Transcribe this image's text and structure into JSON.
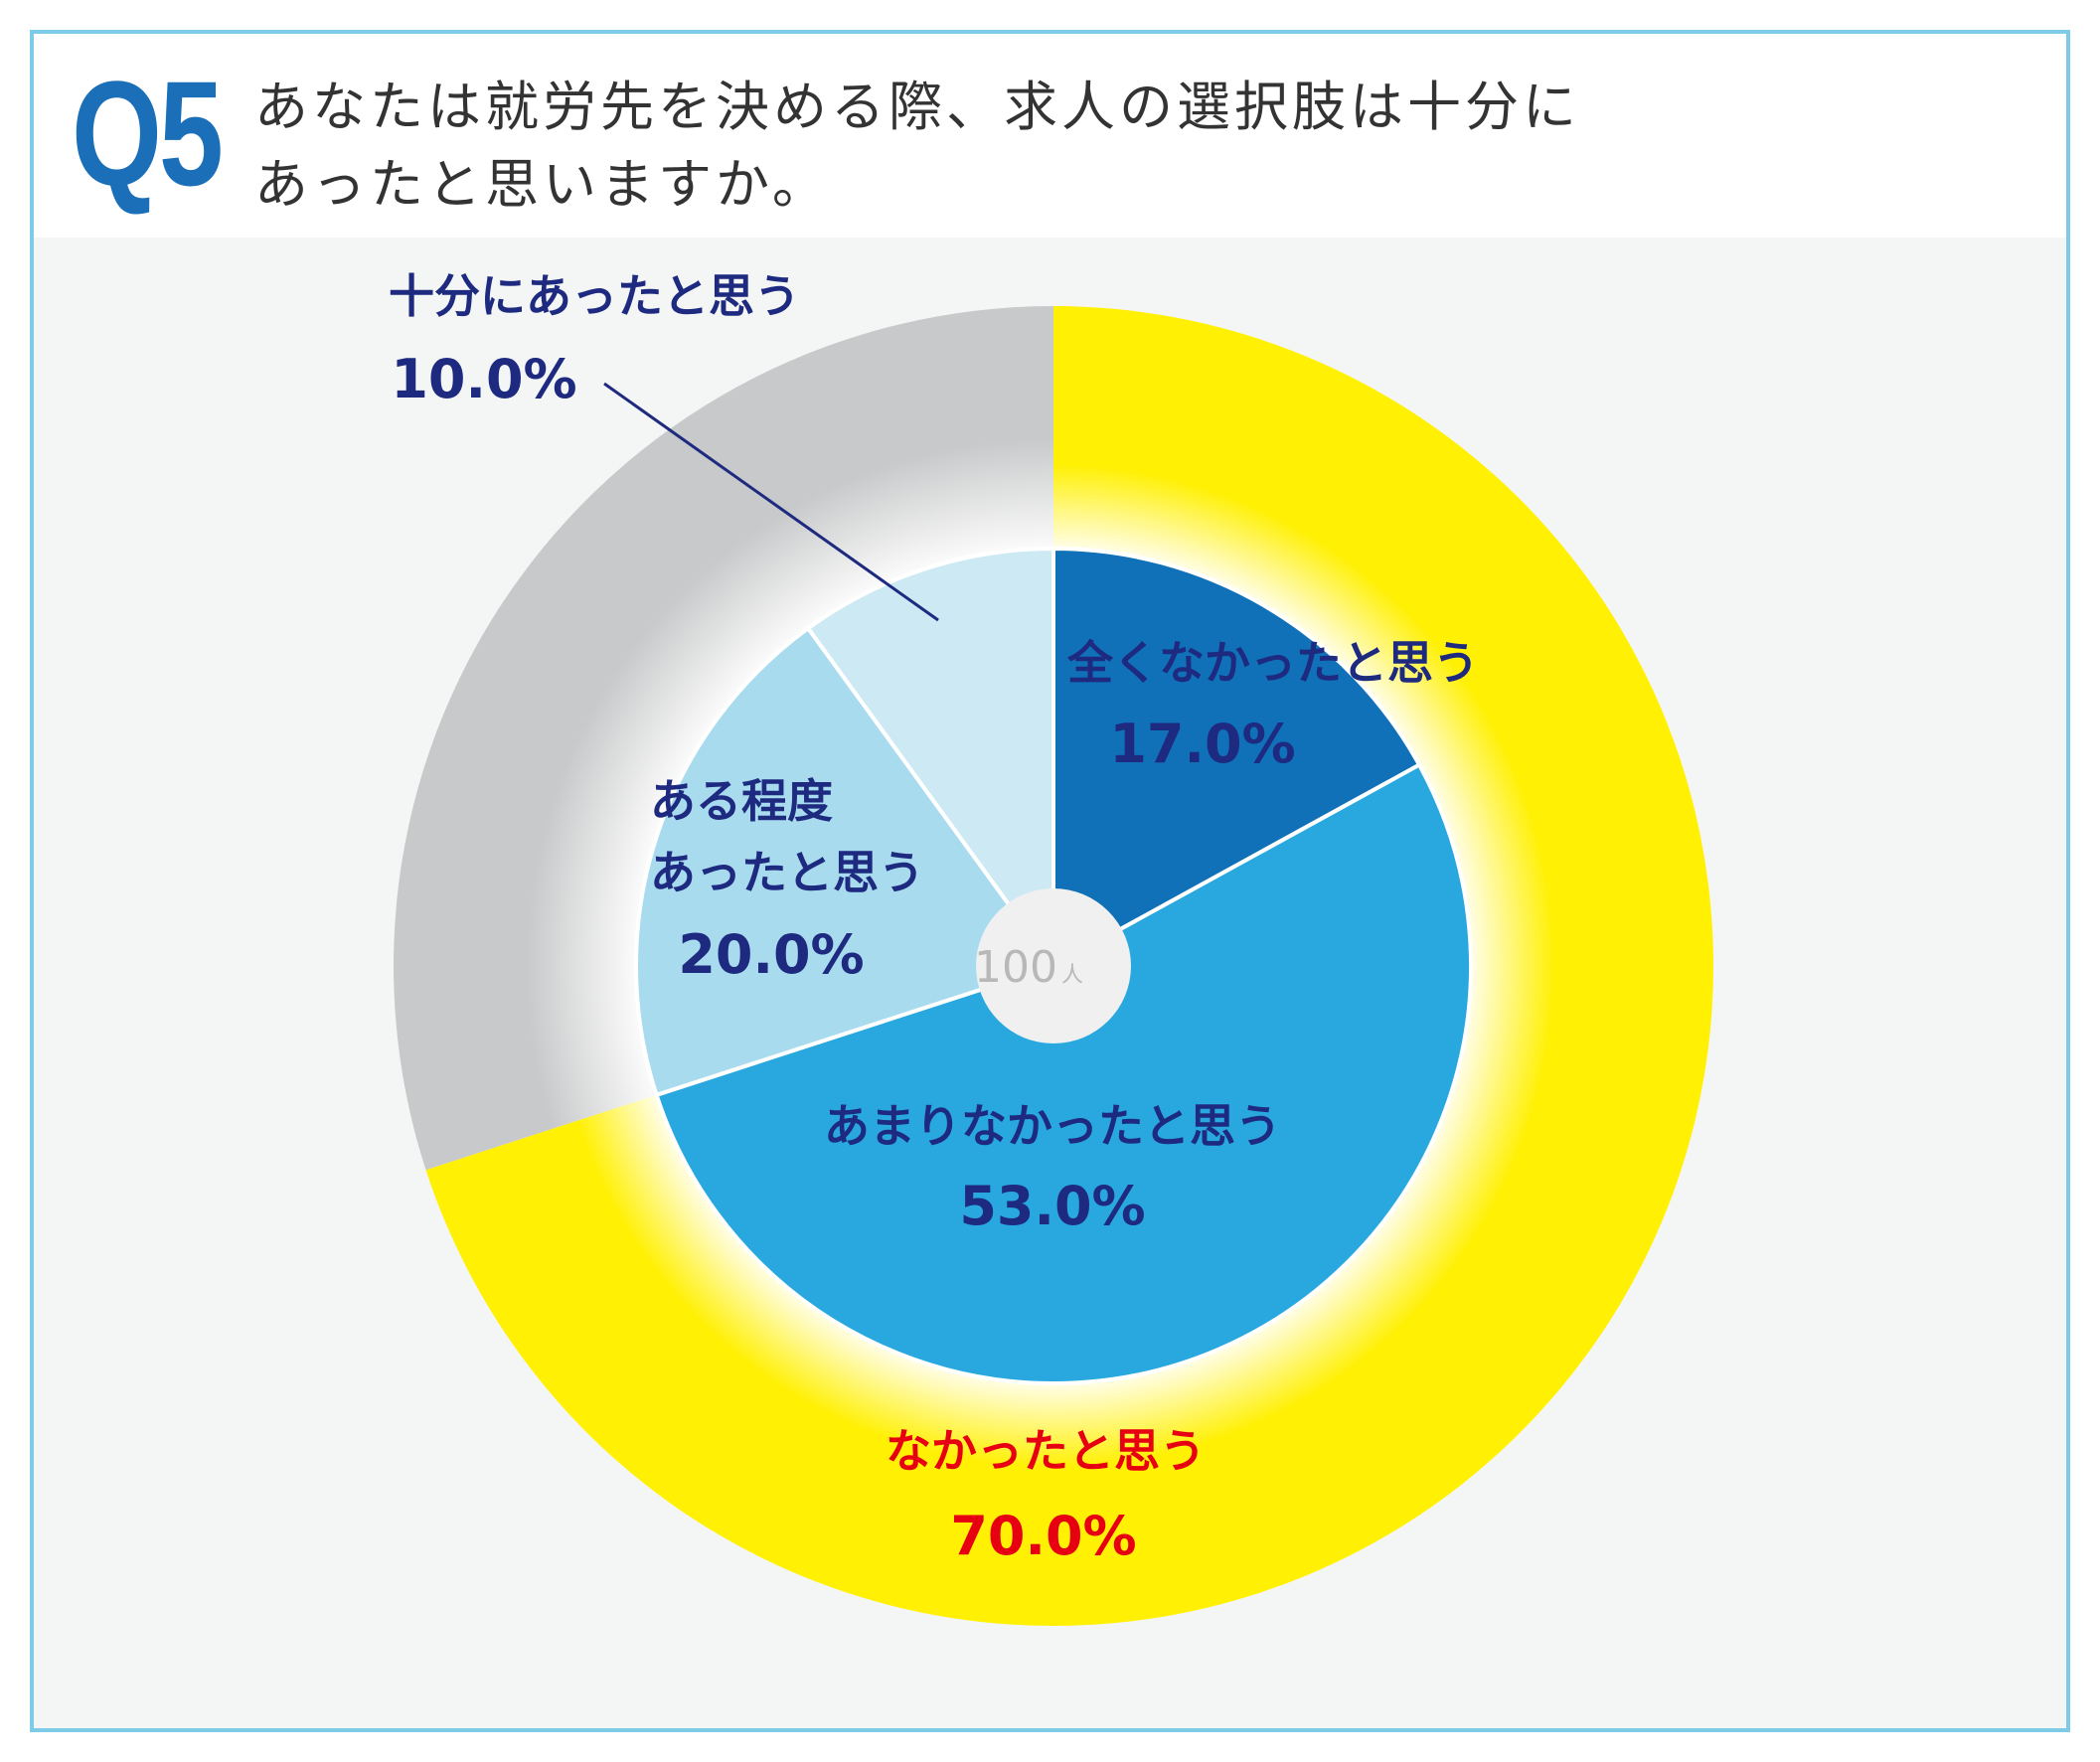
{
  "header": {
    "q_label": "Q5",
    "question_line1": "あなたは就労先を決める際、求人の選択肢は十分に",
    "question_line2": "あったと思いますか。"
  },
  "center_label": {
    "value": "100",
    "unit": "人"
  },
  "colors": {
    "yellow": "#fff004",
    "gray": "#c8c9ca",
    "dark_blue": "#1070b8",
    "mid_blue": "#29a8e0",
    "light_blue": "#a9dbef",
    "pale_blue": "#cde9f4",
    "label_navy": "#1d2a80",
    "label_red": "#e60012",
    "q_blue": "#1a6fb8"
  },
  "chart_data": [
    {
      "type": "pie",
      "ring": "inner",
      "categories": [
        "全くなかったと思う",
        "あまりなかったと思う",
        "ある程度あったと思う",
        "十分にあったと思う"
      ],
      "values": [
        17.0,
        53.0,
        20.0,
        10.0
      ],
      "value_labels": [
        "17.0%",
        "53.0%",
        "20.0%",
        "10.0%"
      ],
      "label_lines": [
        [
          "全くなかったと思う"
        ],
        [
          "あまりなかったと思う"
        ],
        [
          "ある程度",
          "あったと思う"
        ],
        [
          "十分にあったと思う"
        ]
      ],
      "colors": [
        "#1070b8",
        "#29a8e0",
        "#a9dbef",
        "#cde9f4"
      ]
    },
    {
      "type": "pie",
      "ring": "outer",
      "categories": [
        "なかったと思う",
        ""
      ],
      "values": [
        70.0,
        30.0
      ],
      "value_labels": [
        "70.0%",
        ""
      ],
      "colors": [
        "#fff004",
        "#c8c9ca"
      ]
    }
  ]
}
